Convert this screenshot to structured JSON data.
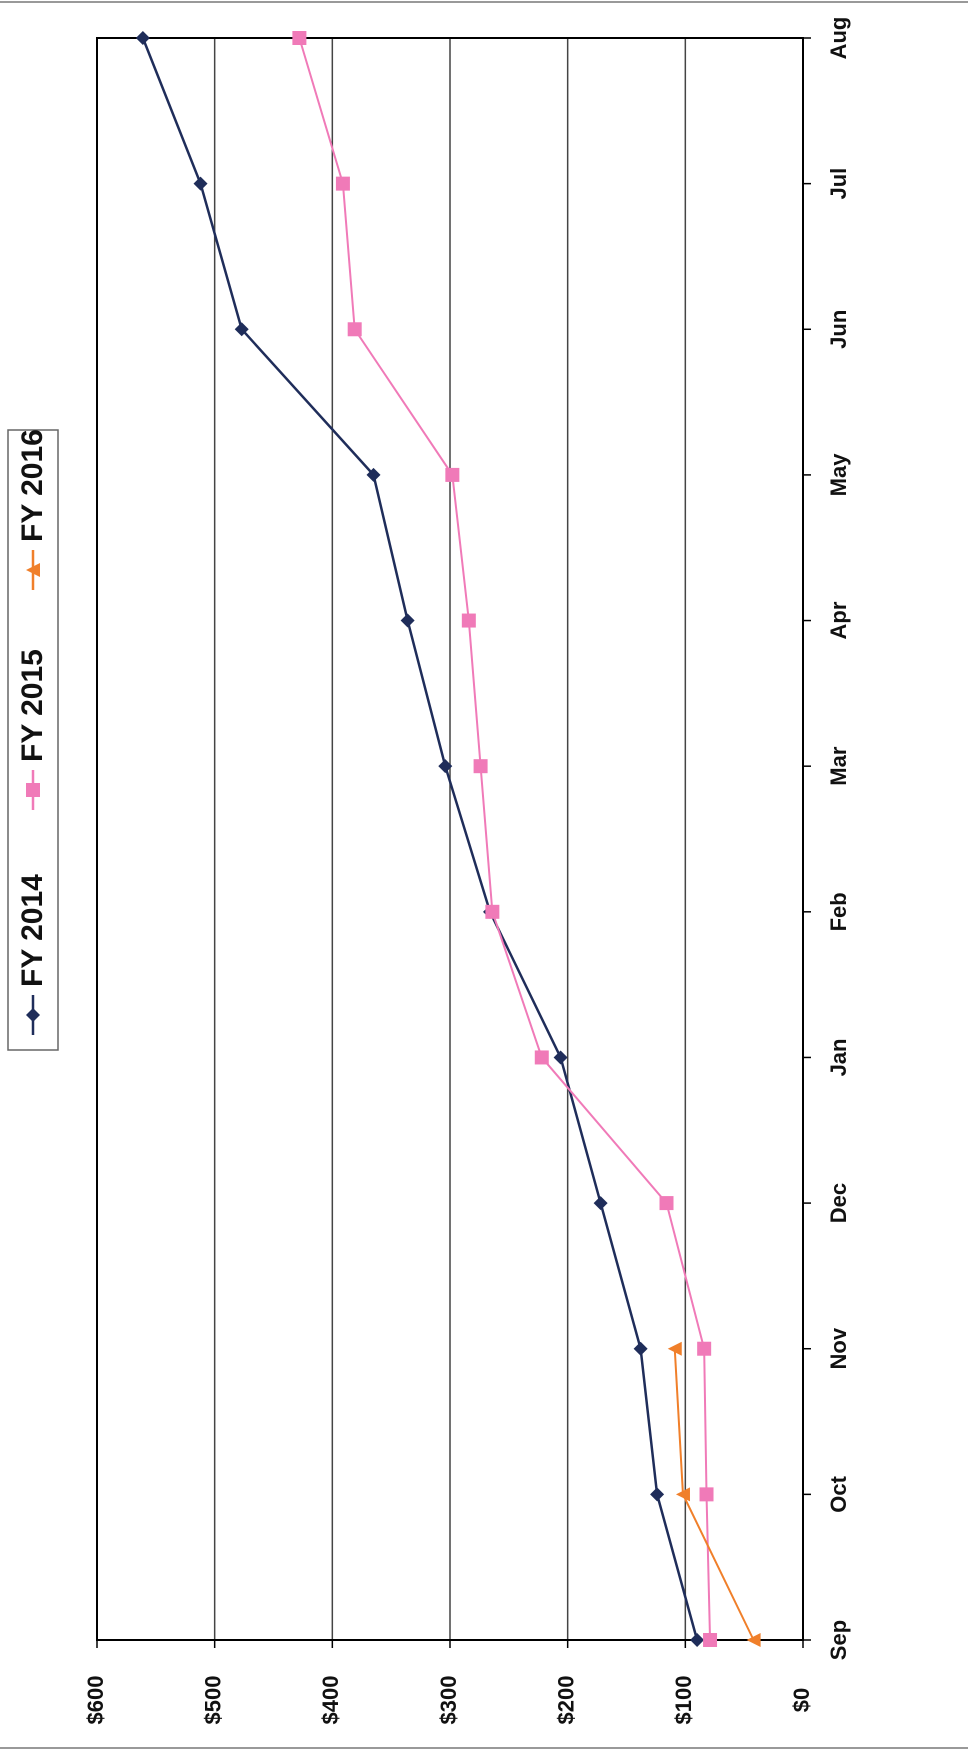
{
  "chart_data": {
    "type": "line",
    "categories": [
      "Sep",
      "Oct",
      "Nov",
      "Dec",
      "Jan",
      "Feb",
      "Mar",
      "Apr",
      "May",
      "Jun",
      "Jul",
      "Aug"
    ],
    "series": [
      {
        "name": "FY 2014",
        "color": "#1f2d5a",
        "marker": "diamond",
        "values": [
          90,
          124,
          138,
          172,
          206,
          266,
          304,
          336,
          365,
          477,
          512,
          561
        ]
      },
      {
        "name": "FY 2015",
        "color": "#f07ab8",
        "marker": "square",
        "values": [
          79,
          82,
          84,
          116,
          222,
          264,
          274,
          284,
          298,
          381,
          391,
          428
        ]
      },
      {
        "name": "FY 2016",
        "color": "#f07f2a",
        "marker": "triangle",
        "values": [
          42,
          102,
          109,
          null,
          null,
          null,
          null,
          null,
          null,
          null,
          null,
          null
        ]
      }
    ],
    "ylim": [
      0,
      600
    ],
    "yticks": [
      {
        "value": 0,
        "label": "$0"
      },
      {
        "value": 100,
        "label": "$100"
      },
      {
        "value": 200,
        "label": "$200"
      },
      {
        "value": 300,
        "label": "$300"
      },
      {
        "value": 400,
        "label": "$400"
      },
      {
        "value": 500,
        "label": "$500"
      },
      {
        "value": 600,
        "label": "$600"
      }
    ],
    "grid": true,
    "legend": "left",
    "orientation": "rotated"
  }
}
